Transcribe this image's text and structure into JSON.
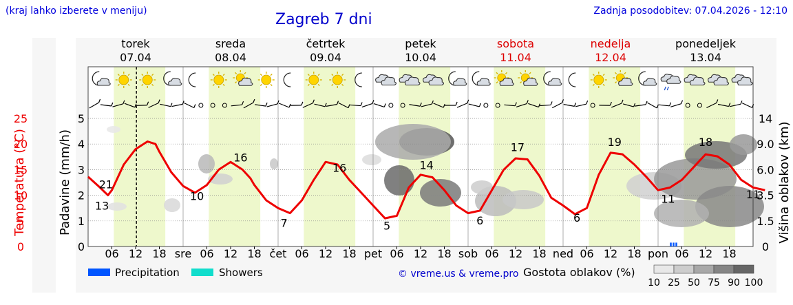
{
  "header": {
    "hint": "(kraj lahko izberete v meniju)",
    "title": "Zagreb 7 dni",
    "updated": "Zadnja posodobitev: 07.04.2026 - 12:10"
  },
  "days": [
    {
      "name": "torek",
      "date": "07.04",
      "weekend": false,
      "abbr": "",
      "temp_min_label": "13",
      "temp_max_label": "21",
      "icons": [
        "moon-cloud-icon",
        "sun-icon",
        "sun-icon",
        "moon-cloud-icon"
      ]
    },
    {
      "name": "sreda",
      "date": "08.04",
      "weekend": false,
      "abbr": "sre",
      "temp_min_label": "10",
      "temp_max_label": "16",
      "icons": [
        "moon-icon",
        "sun-icon",
        "sun-cloud-icon",
        "sun-icon"
      ]
    },
    {
      "name": "četrtek",
      "date": "09.04",
      "weekend": false,
      "abbr": "čet",
      "temp_min_label": "7",
      "temp_max_label": "16",
      "icons": [
        "moon-icon",
        "sun-icon",
        "sun-icon",
        "moon-icon"
      ]
    },
    {
      "name": "petek",
      "date": "10.04",
      "weekend": false,
      "abbr": "pet",
      "temp_min_label": "5",
      "temp_max_label": "14",
      "icons": [
        "cloud-icon",
        "cloud-icon",
        "cloud-icon",
        "moon-cloud-icon"
      ]
    },
    {
      "name": "sobota",
      "date": "11.04",
      "weekend": true,
      "abbr": "sob",
      "temp_min_label": "6",
      "temp_max_label": "17",
      "icons": [
        "moon-cloud-icon",
        "sun-cloud-icon",
        "sun-cloud-icon",
        "moon-cloud-icon"
      ]
    },
    {
      "name": "nedelja",
      "date": "12.04",
      "weekend": true,
      "abbr": "ned",
      "temp_min_label": "6",
      "temp_max_label": "19",
      "icons": [
        "moon-icon",
        "sun-icon",
        "sun-cloud-icon",
        "moon-cloud-icon"
      ]
    },
    {
      "name": "ponedeljek",
      "date": "13.04",
      "weekend": false,
      "abbr": "pon",
      "temp_min_label": "11",
      "temp_max_label": "18",
      "icons": [
        "cloud-rain-icon",
        "cloud-icon",
        "cloud-icon",
        "cloud-icon"
      ]
    }
  ],
  "hour_ticks": [
    "06",
    "12",
    "18"
  ],
  "last_label": "11",
  "legend": {
    "precipitation": "Precipitation",
    "showers": "Showers",
    "copyright": "© vreme.us & vreme.pro",
    "cloud_density": "Gostota oblakov (%)",
    "density_levels": [
      "10",
      "25",
      "50",
      "75",
      "90",
      "100"
    ]
  },
  "colors": {
    "temperature": "#ee0000",
    "precipitation": "#0055ff",
    "showers": "#11ddcc",
    "daylight": "#eef8cc",
    "weekend_text": "#dd0000",
    "link": "#0000cc"
  },
  "chart_data": {
    "type": "line",
    "xlabel": "",
    "axes": {
      "temperature": {
        "label": "Temperatura (°C)",
        "ticks": [
          "0",
          "5",
          "10",
          "15",
          "20",
          "25"
        ],
        "range": [
          0,
          25
        ]
      },
      "precip": {
        "label": "Padavine (mm/h)",
        "ticks": [
          "0",
          "1",
          "2",
          "3",
          "4",
          "5"
        ],
        "range": [
          0,
          5
        ]
      },
      "cloud_height": {
        "label": "Višina oblakov (km)",
        "ticks": [
          "0",
          "1.5",
          "3.5",
          "6.0",
          "9.0",
          "14"
        ]
      }
    },
    "series": [
      {
        "name": "Temperatura (°C)",
        "hours": [
          0,
          3,
          5,
          6,
          9,
          12,
          15,
          17,
          18,
          21,
          24,
          27,
          30,
          33,
          36,
          39,
          41,
          42,
          45,
          48,
          51,
          54,
          57,
          60,
          63,
          66,
          69,
          72,
          75,
          78,
          81,
          84,
          87,
          90,
          93,
          96,
          99,
          102,
          105,
          108,
          111,
          114,
          117,
          120,
          123,
          126,
          129,
          132,
          135,
          138,
          141,
          144,
          147,
          150,
          153,
          156,
          159,
          162,
          165,
          168,
          171
        ],
        "values": [
          13.6,
          11.5,
          10.0,
          11,
          16,
          19,
          20.5,
          20,
          18.5,
          14.5,
          11.8,
          10.5,
          12,
          15,
          16.5,
          15,
          13.3,
          12,
          9,
          7.5,
          6.5,
          9,
          13,
          16.5,
          16,
          13,
          10.5,
          8,
          5.5,
          6,
          11.5,
          14,
          13.5,
          11,
          8,
          6.5,
          7,
          11,
          15,
          17.2,
          17,
          13.8,
          9.5,
          8,
          6.3,
          7.5,
          14,
          18.3,
          18,
          16,
          13.6,
          11,
          11.5,
          13,
          15.5,
          18,
          17.6,
          16,
          13,
          11.5,
          11
        ]
      }
    ],
    "precipitation": [
      {
        "hour": 147,
        "mm": 0.15
      }
    ]
  }
}
